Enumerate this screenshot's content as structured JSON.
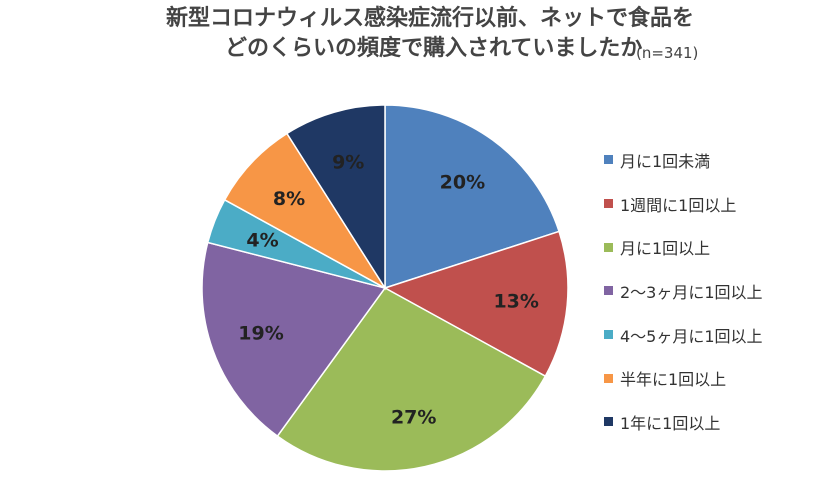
{
  "chart_data": {
    "type": "pie",
    "title_line1": "新型コロナウィルス感染症流行以前、ネットで食品を",
    "title_line2": "どのくらいの頻度で購入されていましたか",
    "sample_size": "(n=341)",
    "legend_position": "right",
    "slices": [
      {
        "label": "月に1回未満",
        "value": 20,
        "display": "20%",
        "color": "#4F81BD"
      },
      {
        "label": "1週間に1回以上",
        "value": 13,
        "display": "13%",
        "color": "#C0504D"
      },
      {
        "label": "月に1回以上",
        "value": 27,
        "display": "27%",
        "color": "#9BBB59"
      },
      {
        "label": "2〜3ヶ月に1回以上",
        "value": 19,
        "display": "19%",
        "color": "#8064A2"
      },
      {
        "label": "4〜5ヶ月に1回以上",
        "value": 4,
        "display": "4%",
        "color": "#4BACC6"
      },
      {
        "label": "半年に1回以上",
        "value": 8,
        "display": "8%",
        "color": "#F79646"
      },
      {
        "label": "1年に1回以上",
        "value": 9,
        "display": "9%",
        "color": "#1F3864"
      }
    ]
  }
}
